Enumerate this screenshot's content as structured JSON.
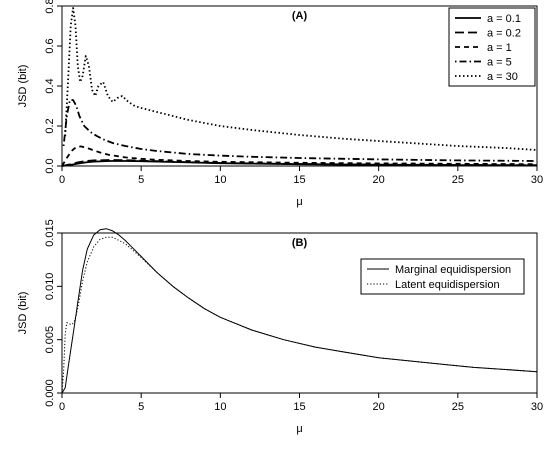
{
  "colors": {
    "background": "#ffffff",
    "ink": "#000000"
  },
  "chart_data": [
    {
      "type": "line",
      "panel_label": "(A)",
      "xlabel": "μ",
      "ylabel": "JSD (bit)",
      "xlim": [
        0,
        30
      ],
      "ylim": [
        0,
        0.8
      ],
      "xticks": [
        0,
        5,
        10,
        15,
        20,
        25,
        30
      ],
      "yticks": [
        0.0,
        0.2,
        0.4,
        0.6,
        0.8
      ],
      "ytick_labels": [
        "0.0",
        "0.2",
        "0.4",
        "0.6",
        "0.8"
      ],
      "grid": false,
      "legend_position": "top-right",
      "series": [
        {
          "name": "a = 0.1",
          "style": "solid",
          "x": [
            0,
            0.5,
            1,
            1.5,
            2,
            3,
            4,
            5,
            6,
            8,
            10,
            15,
            20,
            25,
            30
          ],
          "y": [
            0,
            0.005,
            0.012,
            0.018,
            0.022,
            0.025,
            0.025,
            0.024,
            0.022,
            0.018,
            0.014,
            0.009,
            0.006,
            0.004,
            0.003
          ]
        },
        {
          "name": "a = 0.2",
          "style": "longdash",
          "x": [
            0,
            0.5,
            1,
            1.5,
            2,
            3,
            4,
            5,
            6,
            8,
            10,
            15,
            20,
            25,
            30
          ],
          "y": [
            0,
            0.008,
            0.018,
            0.025,
            0.028,
            0.03,
            0.029,
            0.027,
            0.024,
            0.019,
            0.015,
            0.01,
            0.007,
            0.005,
            0.004
          ]
        },
        {
          "name": "a = 1",
          "style": "dashed",
          "x": [
            0,
            0.3,
            0.6,
            0.9,
            1.2,
            1.6,
            2,
            2.5,
            3,
            4,
            5,
            6,
            8,
            10,
            15,
            20,
            25,
            30
          ],
          "y": [
            0,
            0.04,
            0.075,
            0.095,
            0.098,
            0.09,
            0.078,
            0.065,
            0.055,
            0.043,
            0.036,
            0.031,
            0.025,
            0.021,
            0.016,
            0.013,
            0.011,
            0.009
          ]
        },
        {
          "name": "a = 5",
          "style": "dotdash",
          "x": [
            0.1,
            0.3,
            0.5,
            0.7,
            0.9,
            1.1,
            1.4,
            1.8,
            2.2,
            2.7,
            3.2,
            4,
            5,
            6,
            8,
            10,
            12,
            15,
            20,
            25,
            30
          ],
          "y": [
            0.1,
            0.25,
            0.33,
            0.33,
            0.3,
            0.25,
            0.2,
            0.17,
            0.15,
            0.13,
            0.115,
            0.1,
            0.085,
            0.075,
            0.06,
            0.052,
            0.046,
            0.04,
            0.033,
            0.028,
            0.025
          ]
        },
        {
          "name": "a = 30",
          "style": "dotted",
          "x": [
            0.2,
            0.4,
            0.55,
            0.7,
            0.85,
            1.0,
            1.15,
            1.3,
            1.5,
            1.7,
            1.9,
            2.1,
            2.3,
            2.6,
            2.9,
            3.2,
            3.5,
            3.8,
            4.2,
            4.6,
            5,
            6,
            7,
            8,
            10,
            12,
            15,
            18,
            20,
            22,
            25,
            28,
            30
          ],
          "y": [
            0.15,
            0.45,
            0.7,
            0.79,
            0.7,
            0.5,
            0.42,
            0.45,
            0.55,
            0.5,
            0.38,
            0.35,
            0.4,
            0.42,
            0.35,
            0.32,
            0.34,
            0.35,
            0.32,
            0.3,
            0.29,
            0.27,
            0.25,
            0.23,
            0.2,
            0.18,
            0.155,
            0.135,
            0.125,
            0.115,
            0.1,
            0.09,
            0.08
          ]
        }
      ]
    },
    {
      "type": "line",
      "panel_label": "(B)",
      "xlabel": "μ",
      "ylabel": "JSD (bit)",
      "xlim": [
        0,
        30
      ],
      "ylim": [
        0,
        0.015
      ],
      "xticks": [
        0,
        5,
        10,
        15,
        20,
        25,
        30
      ],
      "yticks": [
        0.0,
        0.005,
        0.01,
        0.015
      ],
      "ytick_labels": [
        "0.000",
        "0.005",
        "0.010",
        "0.015"
      ],
      "grid": false,
      "legend_position": "top-right",
      "series": [
        {
          "name": "Marginal equidispersion",
          "style": "solid",
          "x": [
            0,
            0.2,
            0.4,
            0.6,
            0.8,
            1,
            1.3,
            1.6,
            2,
            2.4,
            2.8,
            3.2,
            3.6,
            4,
            5,
            6,
            7,
            8,
            9,
            10,
            12,
            14,
            16,
            18,
            20,
            22,
            24,
            26,
            28,
            30
          ],
          "y": [
            0,
            0.0005,
            0.0025,
            0.0045,
            0.0065,
            0.0085,
            0.0115,
            0.0135,
            0.0148,
            0.0153,
            0.0154,
            0.0152,
            0.0148,
            0.0143,
            0.0128,
            0.0113,
            0.01,
            0.0089,
            0.0079,
            0.0071,
            0.0059,
            0.005,
            0.0043,
            0.0038,
            0.0033,
            0.003,
            0.0027,
            0.0024,
            0.0022,
            0.002
          ]
        },
        {
          "name": "Latent equidispersion",
          "style": "dotted",
          "x": [
            0,
            0.1,
            0.2,
            0.3,
            0.45,
            0.6,
            0.75,
            0.9,
            1.1,
            1.3,
            1.6,
            2,
            2.4,
            2.8,
            3.2,
            3.6,
            4,
            5,
            6,
            7,
            8,
            9,
            10,
            12,
            14,
            16,
            18,
            20,
            22,
            24,
            26,
            28,
            30
          ],
          "y": [
            0,
            0.002,
            0.0055,
            0.0066,
            0.0065,
            0.0064,
            0.0066,
            0.0073,
            0.0088,
            0.0105,
            0.0123,
            0.0137,
            0.0144,
            0.0146,
            0.0146,
            0.0143,
            0.014,
            0.0127,
            0.0113,
            0.01,
            0.0089,
            0.0079,
            0.0071,
            0.0059,
            0.005,
            0.0043,
            0.0038,
            0.0033,
            0.003,
            0.0027,
            0.0024,
            0.0022,
            0.002
          ]
        }
      ]
    }
  ]
}
